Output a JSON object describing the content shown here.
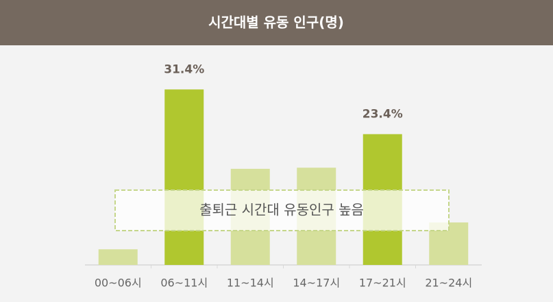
{
  "chart_data": {
    "type": "bar",
    "title": "시간대별 유동 인구(명)",
    "categories": [
      "00~06시",
      "06~11시",
      "11~14시",
      "14~17시",
      "17~21시",
      "21~24시"
    ],
    "values": [
      2.8,
      31.4,
      17.2,
      17.4,
      23.4,
      7.6
    ],
    "value_labels": [
      null,
      "31.4%",
      null,
      null,
      "23.4%",
      null
    ],
    "colors": [
      "#d6e09c",
      "#b0c72f",
      "#d6e09c",
      "#d6e09c",
      "#b0c72f",
      "#d6e09c"
    ],
    "ylim": [
      0,
      35
    ],
    "annotation": "출퇴근 시간대 유동인구 높음"
  }
}
